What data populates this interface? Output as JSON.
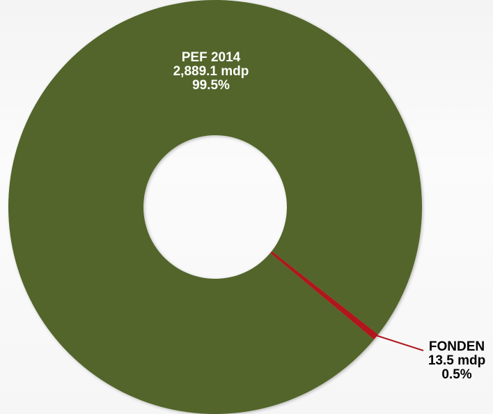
{
  "chart_data": {
    "type": "pie",
    "title": "",
    "slices": [
      {
        "name": "PEF 2014",
        "amount": "2,889.1 mdp",
        "percent_label": "99.5%",
        "value": 99.5,
        "color": "#52652a",
        "label_color": "#ffffff"
      },
      {
        "name": "FONDEN",
        "amount": "13.5 mdp",
        "percent_label": "0.5%",
        "value": 0.5,
        "color": "#b0191f",
        "label_color": "#000000"
      }
    ],
    "donut": true,
    "legend": "none",
    "leader_line_color": "#b0191f"
  }
}
